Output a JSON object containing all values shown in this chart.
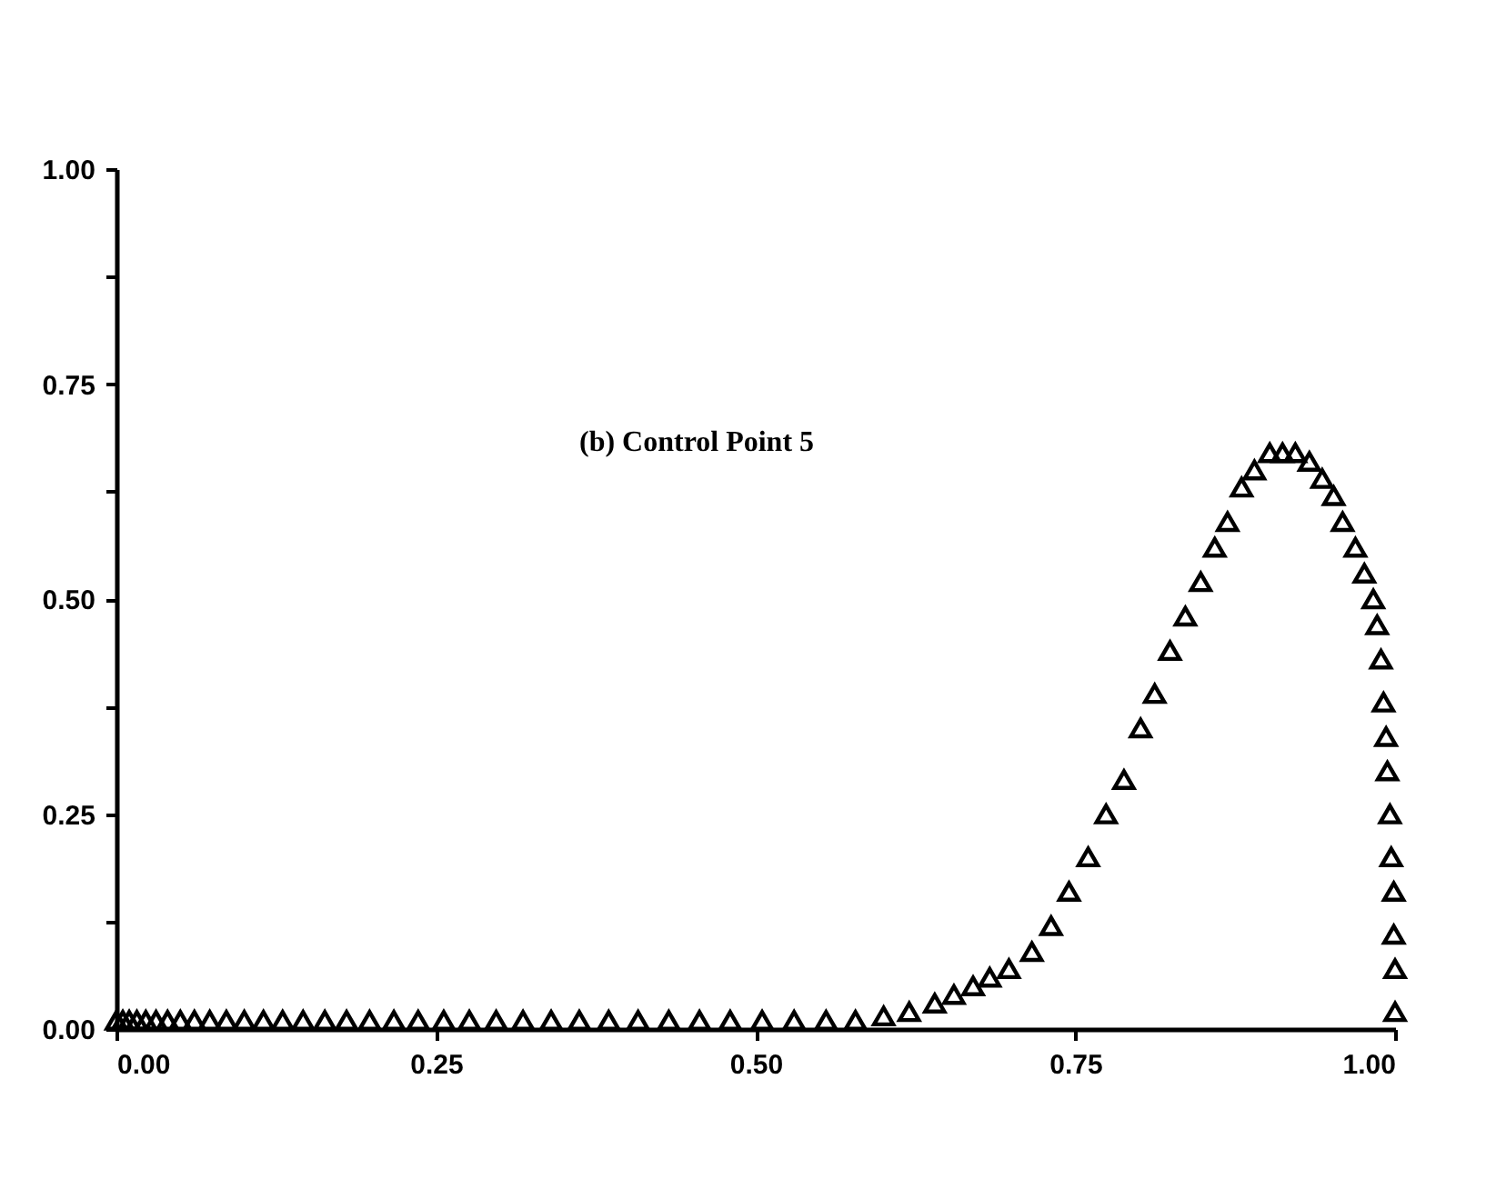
{
  "chart_data": {
    "type": "scatter",
    "marker": "triangle",
    "grid": false,
    "annotations": [
      "(b) Control Point 5"
    ],
    "xlim": [
      0,
      1
    ],
    "ylim": [
      0,
      1
    ],
    "xticks": [
      {
        "value": 0,
        "label": "0.00"
      },
      {
        "value": 0.25,
        "label": "0.25"
      },
      {
        "value": 0.5,
        "label": "0.50"
      },
      {
        "value": 0.75,
        "label": "0.75"
      },
      {
        "value": 1,
        "label": "1.00"
      }
    ],
    "yticks": [
      {
        "value": 0,
        "label": "0.00"
      },
      {
        "value": 0.125,
        "label": null
      },
      {
        "value": 0.25,
        "label": "0.25"
      },
      {
        "value": 0.375,
        "label": null
      },
      {
        "value": 0.5,
        "label": "0.50"
      },
      {
        "value": 0.625,
        "label": null
      },
      {
        "value": 0.75,
        "label": "0.75"
      },
      {
        "value": 0.875,
        "label": null
      },
      {
        "value": 1,
        "label": "1.00"
      }
    ],
    "x": [
      0,
      0.005,
      0.01,
      0.016,
      0.023,
      0.031,
      0.04,
      0.05,
      0.061,
      0.073,
      0.086,
      0.1,
      0.115,
      0.13,
      0.146,
      0.163,
      0.18,
      0.198,
      0.217,
      0.236,
      0.256,
      0.276,
      0.297,
      0.318,
      0.34,
      0.362,
      0.385,
      0.408,
      0.432,
      0.456,
      0.48,
      0.505,
      0.53,
      0.555,
      0.578,
      0.6,
      0.62,
      0.64,
      0.655,
      0.67,
      0.683,
      0.698,
      0.716,
      0.731,
      0.745,
      0.76,
      0.774,
      0.788,
      0.801,
      0.812,
      0.824,
      0.836,
      0.848,
      0.859,
      0.869,
      0.88,
      0.89,
      0.902,
      0.912,
      0.922,
      0.933,
      0.943,
      0.952,
      0.959,
      0.969,
      0.976,
      0.983,
      0.986,
      0.989,
      0.991,
      0.993,
      0.994,
      0.996,
      0.997,
      0.999,
      0.999,
      1,
      1
    ],
    "series": [
      {
        "color": "#000000",
        "values": [
          0.01,
          0.01,
          0.01,
          0.01,
          0.01,
          0.01,
          0.01,
          0.01,
          0.01,
          0.01,
          0.01,
          0.01,
          0.01,
          0.01,
          0.01,
          0.01,
          0.01,
          0.01,
          0.01,
          0.01,
          0.01,
          0.01,
          0.01,
          0.01,
          0.01,
          0.01,
          0.01,
          0.01,
          0.01,
          0.01,
          0.01,
          0.01,
          0.01,
          0.01,
          0.01,
          0.015,
          0.02,
          0.03,
          0.04,
          0.05,
          0.06,
          0.07,
          0.09,
          0.12,
          0.16,
          0.2,
          0.25,
          0.29,
          0.35,
          0.39,
          0.44,
          0.48,
          0.52,
          0.56,
          0.59,
          0.63,
          0.65,
          0.67,
          0.67,
          0.67,
          0.66,
          0.64,
          0.62,
          0.59,
          0.56,
          0.53,
          0.5,
          0.47,
          0.43,
          0.38,
          0.34,
          0.3,
          0.25,
          0.2,
          0.16,
          0.11,
          0.07,
          0.02
        ]
      }
    ]
  }
}
